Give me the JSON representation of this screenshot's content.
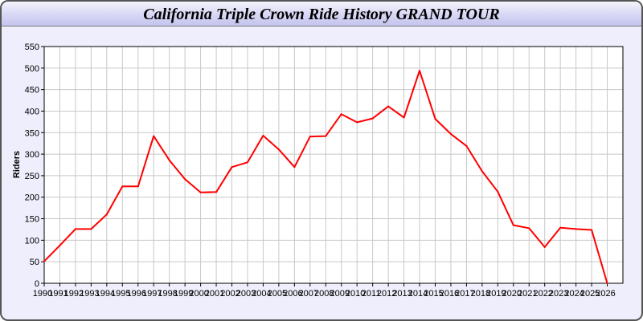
{
  "chart_data": {
    "type": "line",
    "title": "California Triple Crown Ride History GRAND TOUR",
    "xlabel": "",
    "ylabel": "Riders",
    "xlim": [
      1990,
      2027
    ],
    "ylim": [
      0,
      550
    ],
    "y_ticks": [
      0,
      50,
      100,
      150,
      200,
      250,
      300,
      350,
      400,
      450,
      500,
      550
    ],
    "grid": true,
    "line_color": "#ff0000",
    "x": [
      1990,
      1991,
      1992,
      1993,
      1994,
      1995,
      1996,
      1997,
      1998,
      1999,
      2000,
      2001,
      2002,
      2003,
      2004,
      2005,
      2006,
      2007,
      2008,
      2009,
      2010,
      2011,
      2012,
      2013,
      2014,
      2015,
      2016,
      2017,
      2018,
      2019,
      2020,
      2021,
      2022,
      2023,
      2024,
      2025,
      2026
    ],
    "values": [
      51,
      88,
      126,
      126,
      160,
      225,
      225,
      342,
      286,
      242,
      211,
      212,
      270,
      281,
      343,
      311,
      270,
      341,
      342,
      393,
      374,
      383,
      411,
      385,
      494,
      382,
      347,
      319,
      260,
      213,
      135,
      128,
      84,
      129,
      126,
      124,
      0
    ]
  }
}
